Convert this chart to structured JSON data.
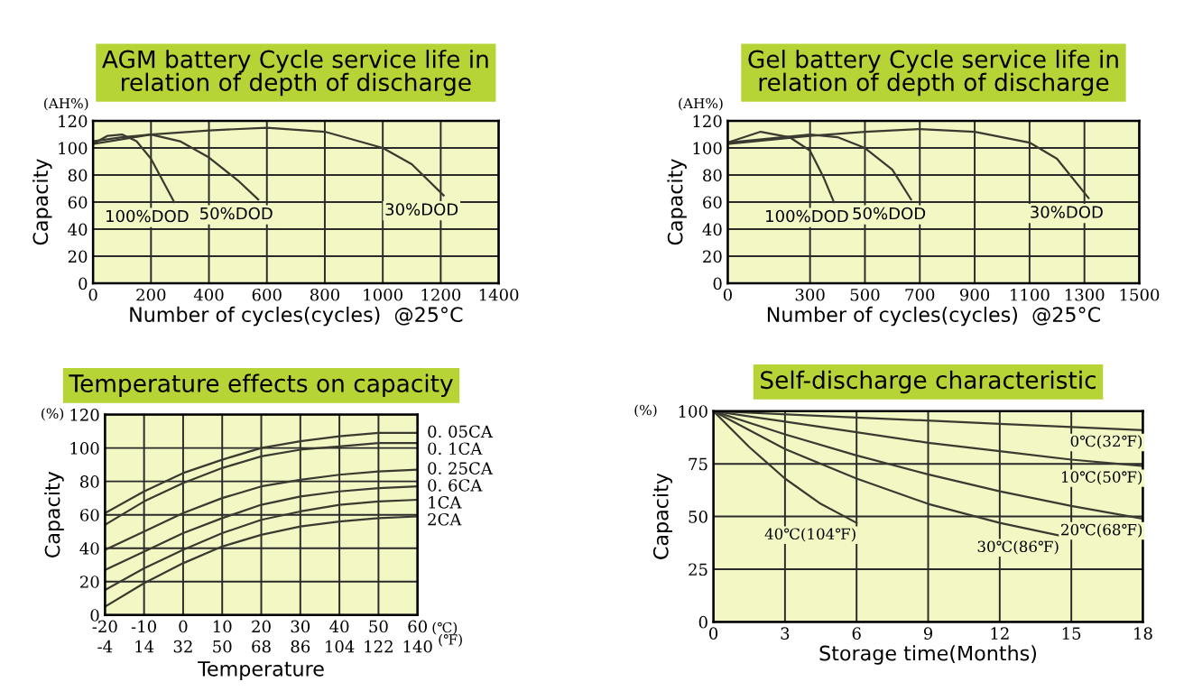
{
  "chart_data": [
    {
      "type": "line",
      "title": "AGM battery Cycle service life in\nrelation of depth of discharge",
      "xlabel": "Number of cycles(cycles)  @25°C",
      "ylabel": "Capacity",
      "annotations": [
        "(AH%)"
      ],
      "xlim": [
        0,
        1400
      ],
      "xticks": [
        0,
        200,
        400,
        600,
        800,
        1000,
        1200,
        1400
      ],
      "ylim": [
        0,
        120
      ],
      "yticks": [
        0,
        20,
        40,
        60,
        80,
        100,
        120
      ],
      "grid": true,
      "legend": false,
      "marker": "none",
      "line_style": "solid",
      "series": [
        {
          "name": "100%DOD",
          "color": "#3a3a30",
          "x": [
            0,
            50,
            100,
            150,
            200,
            250,
            280
          ],
          "values": [
            103,
            109,
            110,
            105,
            92,
            72,
            60
          ]
        },
        {
          "name": "50%DOD",
          "color": "#3a3a30",
          "x": [
            0,
            100,
            200,
            300,
            400,
            500,
            570
          ],
          "values": [
            105,
            108,
            110,
            105,
            93,
            76,
            62
          ]
        },
        {
          "name": "30%DOD",
          "color": "#3a3a30",
          "x": [
            0,
            200,
            400,
            600,
            800,
            1000,
            1100,
            1210
          ],
          "values": [
            103,
            110,
            113,
            115,
            112,
            100,
            88,
            65
          ]
        }
      ]
    },
    {
      "type": "line",
      "title": "Gel battery Cycle service life in\nrelation of depth of discharge",
      "xlabel": "Number of cycles(cycles)  @25°C",
      "ylabel": "Capacity",
      "annotations": [
        "(AH%)"
      ],
      "xlim": [
        0,
        1500
      ],
      "xticks": [
        0,
        300,
        500,
        700,
        900,
        1100,
        1300,
        1500
      ],
      "ylim": [
        0,
        120
      ],
      "yticks": [
        0,
        20,
        40,
        60,
        80,
        100,
        120
      ],
      "grid": true,
      "legend": false,
      "marker": "none",
      "line_style": "solid",
      "series": [
        {
          "name": "100%DOD",
          "color": "#3a3a30",
          "x": [
            0,
            120,
            225,
            300,
            350,
            387
          ],
          "values": [
            104,
            112,
            108,
            98,
            78,
            60
          ]
        },
        {
          "name": "50%DOD",
          "color": "#3a3a30",
          "x": [
            0,
            300,
            400,
            500,
            600,
            668
          ],
          "values": [
            104,
            110,
            108,
            100,
            84,
            62
          ]
        },
        {
          "name": "30%DOD",
          "color": "#3a3a30",
          "x": [
            0,
            300,
            500,
            700,
            900,
            1100,
            1200,
            1315
          ],
          "values": [
            103,
            109,
            112,
            114,
            112,
            104,
            92,
            63
          ]
        }
      ]
    },
    {
      "type": "line",
      "title": "Temperature effects on capacity",
      "xlabel": "Temperature",
      "ylabel": "Capacity",
      "annotations": [
        "(%)",
        "(℃)",
        "(℉)"
      ],
      "xlim": [
        -20,
        60
      ],
      "xticks": [
        -20,
        -10,
        0,
        10,
        20,
        30,
        40,
        50,
        60
      ],
      "x2lim": [
        -4,
        140
      ],
      "x2ticks": [
        -4,
        14,
        32,
        50,
        68,
        86,
        104,
        122,
        140
      ],
      "ylim": [
        0,
        120
      ],
      "yticks": [
        0,
        20,
        40,
        60,
        80,
        100,
        120
      ],
      "grid": true,
      "legend": false,
      "marker": "none",
      "line_style": "solid",
      "x": [
        -20,
        -10,
        0,
        10,
        20,
        30,
        40,
        50,
        60
      ],
      "series": [
        {
          "name": "0. 05CA",
          "color": "#3a3a30",
          "values": [
            61,
            74,
            85,
            93,
            100,
            104,
            107,
            109,
            109
          ]
        },
        {
          "name": "0. 1CA",
          "color": "#3a3a30",
          "values": [
            54,
            68,
            79,
            88,
            95,
            99,
            101,
            103,
            103
          ]
        },
        {
          "name": "0. 25CA",
          "color": "#3a3a30",
          "values": [
            39,
            50,
            61,
            70,
            77,
            81,
            84,
            86,
            87
          ]
        },
        {
          "name": "0. 6CA",
          "color": "#3a3a30",
          "values": [
            27,
            38,
            49,
            58,
            66,
            71,
            74,
            76,
            77
          ]
        },
        {
          "name": "1CA",
          "color": "#3a3a30",
          "values": [
            15,
            28,
            39,
            49,
            57,
            62,
            66,
            68,
            69
          ]
        },
        {
          "name": "2CA",
          "color": "#3a3a30",
          "values": [
            5,
            19,
            31,
            41,
            48,
            53,
            56,
            58,
            59
          ]
        }
      ]
    },
    {
      "type": "line",
      "title": "Self-discharge characteristic",
      "xlabel": "Storage time(Months)",
      "ylabel": "Capacity",
      "annotations": [
        "(%)"
      ],
      "xlim": [
        0,
        18
      ],
      "xticks": [
        0,
        3,
        6,
        9,
        12,
        15,
        18
      ],
      "ylim": [
        0,
        100
      ],
      "yticks": [
        0,
        25,
        50,
        75,
        100
      ],
      "grid": true,
      "legend": false,
      "marker": "none",
      "line_style": "solid",
      "series": [
        {
          "name": "0℃(32℉)",
          "color": "#3a3a30",
          "x": [
            0,
            6,
            12,
            18
          ],
          "values": [
            100,
            97,
            94,
            91
          ]
        },
        {
          "name": "10℃(50℉)",
          "color": "#3a3a30",
          "x": [
            0,
            3,
            6,
            9,
            12,
            15,
            18
          ],
          "values": [
            100,
            95,
            90,
            85,
            81,
            77,
            74
          ]
        },
        {
          "name": "20℃(68℉)",
          "color": "#3a3a30",
          "x": [
            0,
            3,
            6,
            9,
            12,
            15,
            18
          ],
          "values": [
            100,
            89,
            79,
            70,
            62,
            55,
            49
          ]
        },
        {
          "name": "30℃(86℉)",
          "color": "#3a3a30",
          "x": [
            0,
            3,
            6,
            9,
            12,
            14.5
          ],
          "values": [
            100,
            82,
            68,
            56,
            47,
            41
          ]
        },
        {
          "name": "40℃(104℉)",
          "color": "#3a3a30",
          "x": [
            0,
            1.5,
            3,
            4.5,
            6
          ],
          "values": [
            100,
            83,
            68,
            56,
            47
          ]
        }
      ]
    }
  ]
}
